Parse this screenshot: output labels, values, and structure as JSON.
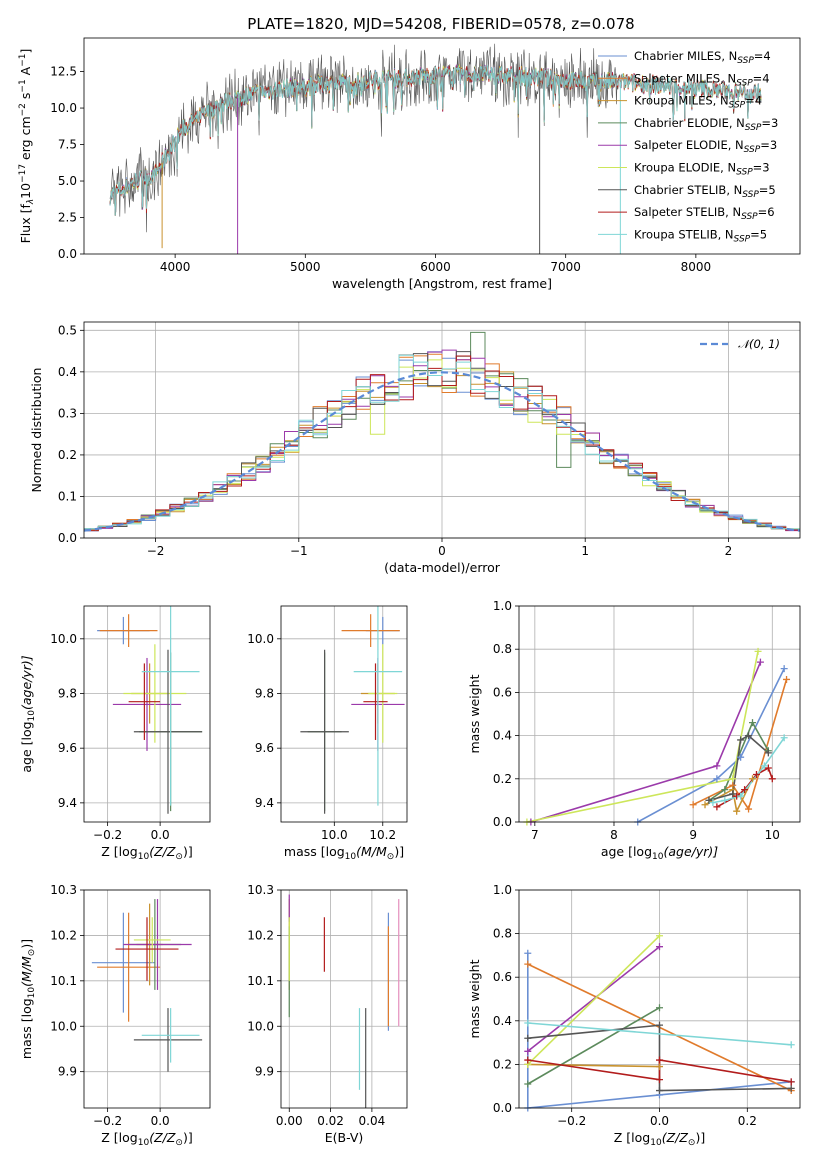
{
  "figure": {
    "title": "PLATE=1820, MJD=54208, FIBERID=0578, z=0.078",
    "model_colors": [
      "#6a8fd2",
      "#e07b2c",
      "#c8922e",
      "#5c8a5c",
      "#9b3aaa",
      "#cde65a",
      "#555555",
      "#b21c1c",
      "#7fd6d6"
    ]
  },
  "chart_data": [
    {
      "id": "spectrum",
      "type": "line",
      "xlabel": "wavelength [Angstrom, rest frame]",
      "ylabel": "Flux [f$_\\lambda$10$^{-17}$ erg cm$^{-2}$ s$^{-1}$ A$^{-1}$]",
      "ylabel_parts": {
        "a": "Flux [f",
        "b": "λ",
        "c": "10",
        "d": "−17",
        "e": " erg cm",
        "f": "−2",
        "g": " s",
        "h": "−1",
        "i": " A",
        "j": "−1",
        "k": "]"
      },
      "xlim": [
        3300,
        8800
      ],
      "ylim": [
        0,
        14.8
      ],
      "xticks": [
        "4000",
        "5000",
        "6000",
        "7000",
        "8000"
      ],
      "yticks": [
        "0.0",
        "2.5",
        "5.0",
        "7.5",
        "10.0",
        "12.5"
      ],
      "legend_placement": "right",
      "legend": [
        {
          "name": "Chabrier MILES, N",
          "sub": "SSP",
          "val": "=4"
        },
        {
          "name": "Salpeter MILES, N",
          "sub": "SSP",
          "val": "=4"
        },
        {
          "name": "Kroupa MILES, N",
          "sub": "SSP",
          "val": "=4"
        },
        {
          "name": "Chabrier ELODIE, N",
          "sub": "SSP",
          "val": "=3"
        },
        {
          "name": "Salpeter ELODIE, N",
          "sub": "SSP",
          "val": "=3"
        },
        {
          "name": "Kroupa ELODIE, N",
          "sub": "SSP",
          "val": "=3"
        },
        {
          "name": "Chabrier STELIB, N",
          "sub": "SSP",
          "val": "=5"
        },
        {
          "name": "Salpeter STELIB, N",
          "sub": "SSP",
          "val": "=6"
        },
        {
          "name": "Kroupa STELIB, N",
          "sub": "SSP",
          "val": "=5"
        }
      ],
      "continuum": {
        "x": [
          3500,
          3700,
          3850,
          3950,
          4050,
          4200,
          4400,
          4600,
          4800,
          5000,
          5200,
          5400,
          5600,
          5800,
          6000,
          6200,
          6400,
          6600,
          6800,
          7000,
          7200,
          7400
        ],
        "y": [
          4.0,
          5.0,
          5.5,
          7.0,
          8.5,
          9.5,
          10.5,
          11.0,
          11.3,
          11.5,
          11.7,
          11.8,
          12.0,
          12.1,
          12.3,
          12.3,
          12.3,
          12.2,
          12.1,
          11.9,
          11.8,
          11.8
        ]
      },
      "data_range": [
        3500,
        7400
      ],
      "model_range": [
        3500,
        8500
      ],
      "model_end_y": 11.0,
      "drops": [
        {
          "x": 3900,
          "y": 0.4
        },
        {
          "x": 4480,
          "y": 0.0
        },
        {
          "x": 6800,
          "y": 0.0
        },
        {
          "x": 7420,
          "y": 0.0
        }
      ]
    },
    {
      "id": "residuals",
      "type": "histogram",
      "xlabel": "(data-model)/error",
      "ylabel": "Normed distribution",
      "xlim": [
        -2.5,
        2.5
      ],
      "ylim": [
        0,
        0.52
      ],
      "xticks": [
        "−2",
        "−1",
        "0",
        "1",
        "2"
      ],
      "yticks": [
        "0.0",
        "0.1",
        "0.2",
        "0.3",
        "0.4",
        "0.5"
      ],
      "bin_width": 0.1,
      "gaussian_label": "$\\mathcal{N}(0,1)$",
      "gaussian_label_text": "𝒩(0, 1)",
      "legend_placement": "top-right"
    },
    {
      "id": "age_vs_Z",
      "type": "errorbar",
      "xlabel": "Z [log10(Z/Z⊙)]",
      "xlabel_parts": {
        "a": "Z [log",
        "b": "10",
        "c": "(Z/Z",
        "d": "⊙",
        "e": ")]"
      },
      "ylabel": "age [log10(age/yr)]",
      "ylabel_parts": {
        "a": "age  [log",
        "b": "10",
        "c": "(age/yr)]"
      },
      "xlim": [
        -0.29,
        0.19
      ],
      "ylim": [
        9.33,
        10.12
      ],
      "xticks": [
        {
          "v": -0.2,
          "t": "−0.2"
        },
        {
          "v": 0.0,
          "t": "0.0"
        }
      ],
      "yticks": [
        {
          "v": 9.4,
          "t": "9.4"
        },
        {
          "v": 9.6,
          "t": "9.6"
        },
        {
          "v": 9.8,
          "t": "9.8"
        },
        {
          "v": 10.0,
          "t": "10.0"
        }
      ],
      "points": [
        {
          "x": -0.14,
          "y": 10.03,
          "xerr": 0.1,
          "yerr": 0.05
        },
        {
          "x": -0.12,
          "y": 10.03,
          "xerr": 0.11,
          "yerr": 0.06
        },
        {
          "x": -0.04,
          "y": 9.8,
          "xerr": 0.07,
          "yerr": 0.11
        },
        {
          "x": 0.04,
          "y": 9.66,
          "xerr": 0.12,
          "yerr": 0.29
        },
        {
          "x": -0.05,
          "y": 9.76,
          "xerr": 0.13,
          "yerr": 0.17
        },
        {
          "x": -0.02,
          "y": 9.8,
          "xerr": 0.12,
          "yerr": 0.18
        },
        {
          "x": 0.03,
          "y": 9.66,
          "xerr": 0.13,
          "yerr": 0.3
        },
        {
          "x": -0.06,
          "y": 9.77,
          "xerr": 0.06,
          "yerr": 0.14
        },
        {
          "x": 0.04,
          "y": 9.88,
          "xerr": 0.11,
          "yerr": 0.49
        }
      ]
    },
    {
      "id": "age_vs_mass",
      "type": "errorbar",
      "xlabel": "mass [log10(M/M⊙)]",
      "xlabel_parts": {
        "a": "mass [log",
        "b": "10",
        "c": "(M/M",
        "d": "⊙",
        "e": ")]"
      },
      "ylabel": "",
      "xlim": [
        9.78,
        10.3
      ],
      "ylim": [
        9.33,
        10.12
      ],
      "xticks": [
        {
          "v": 10.0,
          "t": "10.0"
        },
        {
          "v": 10.2,
          "t": "10.2"
        }
      ],
      "yticks": [
        {
          "v": 9.4,
          "t": "9.4"
        },
        {
          "v": 9.6,
          "t": "9.6"
        },
        {
          "v": 9.8,
          "t": "9.8"
        },
        {
          "v": 10.0,
          "t": "10.0"
        }
      ],
      "points": [
        {
          "x": 10.2,
          "y": 10.03,
          "xerr": 0.07,
          "yerr": 0.05
        },
        {
          "x": 10.15,
          "y": 10.03,
          "xerr": 0.12,
          "yerr": 0.06
        },
        {
          "x": 10.18,
          "y": 9.8,
          "xerr": 0.07,
          "yerr": 0.11
        },
        {
          "x": 9.96,
          "y": 9.66,
          "xerr": 0.07,
          "yerr": 0.29
        },
        {
          "x": 10.18,
          "y": 9.76,
          "xerr": 0.11,
          "yerr": 0.17
        },
        {
          "x": 10.2,
          "y": 9.8,
          "xerr": 0.06,
          "yerr": 0.18
        },
        {
          "x": 9.96,
          "y": 9.66,
          "xerr": 0.1,
          "yerr": 0.3
        },
        {
          "x": 10.17,
          "y": 9.77,
          "xerr": 0.05,
          "yerr": 0.14
        },
        {
          "x": 10.18,
          "y": 9.88,
          "xerr": 0.1,
          "yerr": 0.49
        }
      ]
    },
    {
      "id": "weights_vs_age",
      "type": "line",
      "xlabel": "age [log10(age/yr)]",
      "xlabel_parts": {
        "a": "age  [log",
        "b": "10",
        "c": "(age/yr)]"
      },
      "ylabel": "mass weight",
      "xlim": [
        6.8,
        10.35
      ],
      "ylim": [
        0,
        1.0
      ],
      "xticks": [
        {
          "v": 7,
          "t": "7"
        },
        {
          "v": 8,
          "t": "8"
        },
        {
          "v": 9,
          "t": "9"
        },
        {
          "v": 10,
          "t": "10"
        }
      ],
      "yticks": [
        {
          "v": 0.0,
          "t": "0.0"
        },
        {
          "v": 0.2,
          "t": "0.2"
        },
        {
          "v": 0.4,
          "t": "0.4"
        },
        {
          "v": 0.6,
          "t": "0.6"
        },
        {
          "v": 0.8,
          "t": "0.8"
        },
        {
          "v": 1.0,
          "t": "1.0"
        }
      ],
      "series": [
        {
          "x": [
            8.3,
            9.3,
            9.6,
            10.15
          ],
          "y": [
            0.0,
            0.2,
            0.3,
            0.71
          ]
        },
        {
          "x": [
            9.0,
            9.5,
            9.7,
            10.18
          ],
          "y": [
            0.08,
            0.17,
            0.06,
            0.66
          ]
        },
        {
          "x": [
            9.15,
            9.5,
            9.55,
            9.75
          ],
          "y": [
            0.08,
            0.15,
            0.05,
            0.2
          ]
        },
        {
          "x": [
            9.2,
            9.4,
            9.75,
            9.95
          ],
          "y": [
            0.1,
            0.15,
            0.46,
            0.33
          ]
        },
        {
          "x": [
            6.95,
            9.3,
            9.85
          ],
          "y": [
            0.0,
            0.26,
            0.74
          ]
        },
        {
          "x": [
            6.9,
            9.5,
            9.82
          ],
          "y": [
            0.0,
            0.2,
            0.79
          ]
        },
        {
          "x": [
            9.2,
            9.5,
            9.6,
            9.7,
            9.95
          ],
          "y": [
            0.1,
            0.13,
            0.38,
            0.4,
            0.32
          ]
        },
        {
          "x": [
            9.3,
            9.55,
            9.65,
            9.8,
            9.95,
            10.0
          ],
          "y": [
            0.07,
            0.12,
            0.15,
            0.22,
            0.25,
            0.2
          ]
        },
        {
          "x": [
            9.25,
            9.4,
            9.6,
            9.9,
            10.15
          ],
          "y": [
            0.09,
            0.1,
            0.12,
            0.26,
            0.39
          ]
        }
      ]
    },
    {
      "id": "mass_vs_Z",
      "type": "errorbar",
      "xlabel": "Z [log10(Z/Z⊙)]",
      "xlabel_parts": {
        "a": "Z [log",
        "b": "10",
        "c": "(Z/Z",
        "d": "⊙",
        "e": ")]"
      },
      "ylabel": "mass [log10(M/M⊙)]",
      "ylabel_parts": {
        "a": "mass [log",
        "b": "10",
        "c": "(M/M",
        "d": "⊙",
        "e": ")]"
      },
      "xlim": [
        -0.29,
        0.19
      ],
      "ylim": [
        9.82,
        10.3
      ],
      "xticks": [
        {
          "v": -0.2,
          "t": "−0.2"
        },
        {
          "v": 0.0,
          "t": "0.0"
        }
      ],
      "yticks": [
        {
          "v": 9.9,
          "t": "9.9"
        },
        {
          "v": 10.0,
          "t": "10.0"
        },
        {
          "v": 10.1,
          "t": "10.1"
        },
        {
          "v": 10.2,
          "t": "10.2"
        },
        {
          "v": 10.3,
          "t": "10.3"
        }
      ],
      "points": [
        {
          "x": -0.14,
          "y": 10.14,
          "xerr": 0.12,
          "yerr": 0.11
        },
        {
          "x": -0.12,
          "y": 10.13,
          "xerr": 0.12,
          "yerr": 0.12
        },
        {
          "x": -0.04,
          "y": 10.18,
          "xerr": 0.05,
          "yerr": 0.09
        },
        {
          "x": -0.02,
          "y": 10.18,
          "xerr": 0.1,
          "yerr": 0.1
        },
        {
          "x": -0.01,
          "y": 10.18,
          "xerr": 0.13,
          "yerr": 0.1
        },
        {
          "x": -0.03,
          "y": 10.19,
          "xerr": 0.07,
          "yerr": 0.05
        },
        {
          "x": 0.03,
          "y": 9.97,
          "xerr": 0.13,
          "yerr": 0.07
        },
        {
          "x": -0.05,
          "y": 10.17,
          "xerr": 0.12,
          "yerr": 0.07
        },
        {
          "x": 0.04,
          "y": 9.98,
          "xerr": 0.11,
          "yerr": 0.06
        }
      ]
    },
    {
      "id": "mass_vs_ebv",
      "type": "errorbar",
      "xlabel": "E(B-V)",
      "ylabel": "",
      "xlim": [
        -0.004,
        0.057
      ],
      "ylim": [
        9.82,
        10.3
      ],
      "xticks": [
        {
          "v": 0.0,
          "t": "0.00"
        },
        {
          "v": 0.02,
          "t": "0.02"
        },
        {
          "v": 0.04,
          "t": "0.04"
        }
      ],
      "yticks": [
        {
          "v": 9.9,
          "t": "9.9"
        },
        {
          "v": 10.0,
          "t": "10.0"
        },
        {
          "v": 10.1,
          "t": "10.1"
        },
        {
          "v": 10.2,
          "t": "10.2"
        },
        {
          "v": 10.3,
          "t": "10.3"
        }
      ],
      "points": [
        {
          "x": 0.048,
          "y": 10.12,
          "xerr": 0,
          "yerr": 0.13
        },
        {
          "x": 0.048,
          "y": 10.11,
          "xerr": 0,
          "yerr": 0.11
        },
        {
          "x": 0.0,
          "y": 10.18,
          "xerr": 0,
          "yerr": 0.1
        },
        {
          "x": 0.0,
          "y": 10.12,
          "xerr": 0,
          "yerr": 0.1
        },
        {
          "x": 0.0,
          "y": 10.26,
          "xerr": 0,
          "yerr": 0.03
        },
        {
          "x": 0.0,
          "y": 10.17,
          "xerr": 0,
          "yerr": 0.07
        },
        {
          "x": 0.037,
          "y": 9.93,
          "xerr": 0,
          "yerr": 0.11
        },
        {
          "x": 0.017,
          "y": 10.18,
          "xerr": 0,
          "yerr": 0.06
        },
        {
          "x": 0.034,
          "y": 9.95,
          "xerr": 0,
          "yerr": 0.09
        }
      ],
      "extra_points": [
        {
          "x": 0.053,
          "y": 10.14,
          "xerr": 0,
          "yerr": 0.14,
          "color": "#e58fbd"
        }
      ]
    },
    {
      "id": "weights_vs_Z",
      "type": "line",
      "xlabel": "Z [log10(Z/Z⊙)]",
      "xlabel_parts": {
        "a": "Z [log",
        "b": "10",
        "c": "(Z/Z",
        "d": "⊙",
        "e": ")]"
      },
      "ylabel": "mass weight",
      "xlim": [
        -0.32,
        0.32
      ],
      "ylim": [
        0,
        1.0
      ],
      "xticks": [
        {
          "v": -0.2,
          "t": "−0.2"
        },
        {
          "v": 0.0,
          "t": "0.0"
        },
        {
          "v": 0.2,
          "t": "0.2"
        }
      ],
      "yticks": [
        {
          "v": 0.0,
          "t": "0.0"
        },
        {
          "v": 0.2,
          "t": "0.2"
        },
        {
          "v": 0.4,
          "t": "0.4"
        },
        {
          "v": 0.6,
          "t": "0.6"
        },
        {
          "v": 0.8,
          "t": "0.8"
        },
        {
          "v": 1.0,
          "t": "1.0"
        }
      ],
      "series": [
        {
          "x": [
            -0.3,
            -0.3,
            0.0,
            0.3
          ],
          "y": [
            0.71,
            0.0,
            0.06,
            0.12
          ]
        },
        {
          "x": [
            -0.3,
            0.3
          ],
          "y": [
            0.66,
            0.08
          ]
        },
        {
          "x": [
            -0.3,
            0.0
          ],
          "y": [
            0.2,
            0.19
          ]
        },
        {
          "x": [
            -0.3,
            0.0
          ],
          "y": [
            0.11,
            0.46
          ]
        },
        {
          "x": [
            -0.3,
            0.0
          ],
          "y": [
            0.26,
            0.74
          ]
        },
        {
          "x": [
            -0.3,
            0.0
          ],
          "y": [
            0.2,
            0.79
          ]
        },
        {
          "x": [
            -0.3,
            0.0,
            0.0,
            0.3
          ],
          "y": [
            0.32,
            0.38,
            0.08,
            0.09
          ]
        },
        {
          "x": [
            -0.3,
            0.0,
            0.0,
            0.3
          ],
          "y": [
            0.22,
            0.13,
            0.22,
            0.12
          ]
        },
        {
          "x": [
            -0.3,
            0.3
          ],
          "y": [
            0.39,
            0.29
          ]
        }
      ]
    }
  ]
}
